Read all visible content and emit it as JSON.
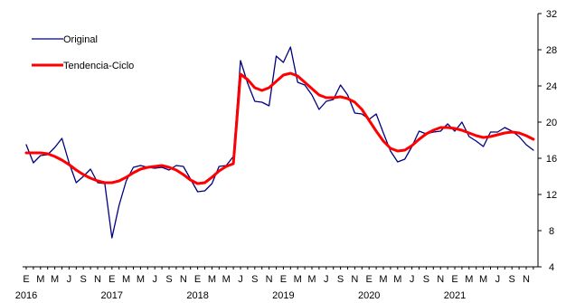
{
  "chart_data": {
    "type": "line",
    "title": "",
    "xlabel": "",
    "ylabel": "",
    "ylim": [
      4,
      32
    ],
    "y_ticks": [
      4,
      8,
      12,
      16,
      20,
      24,
      28,
      32
    ],
    "y_axis_side": "right",
    "grid": false,
    "legend_position": "top-left",
    "x_tick_labels": [
      "E",
      "M",
      "M",
      "J",
      "S",
      "N",
      "E",
      "M",
      "M",
      "J",
      "S",
      "N",
      "E",
      "M",
      "M",
      "J",
      "S",
      "N",
      "E",
      "M",
      "M",
      "J",
      "S",
      "N",
      "E",
      "M",
      "M",
      "J",
      "S",
      "N",
      "E",
      "M",
      "M",
      "J",
      "S",
      "N"
    ],
    "year_labels": [
      {
        "label": "2016",
        "month_index": 0
      },
      {
        "label": "2017",
        "month_index": 12
      },
      {
        "label": "2018",
        "month_index": 24
      },
      {
        "label": "2019",
        "month_index": 36
      },
      {
        "label": "2020",
        "month_index": 48
      },
      {
        "label": "2021",
        "month_index": 60
      }
    ],
    "x": [
      "2016-01",
      "2016-02",
      "2016-03",
      "2016-04",
      "2016-05",
      "2016-06",
      "2016-07",
      "2016-08",
      "2016-09",
      "2016-10",
      "2016-11",
      "2016-12",
      "2017-01",
      "2017-02",
      "2017-03",
      "2017-04",
      "2017-05",
      "2017-06",
      "2017-07",
      "2017-08",
      "2017-09",
      "2017-10",
      "2017-11",
      "2017-12",
      "2018-01",
      "2018-02",
      "2018-03",
      "2018-04",
      "2018-05",
      "2018-06",
      "2018-07",
      "2018-08",
      "2018-09",
      "2018-10",
      "2018-11",
      "2018-12",
      "2019-01",
      "2019-02",
      "2019-03",
      "2019-04",
      "2019-05",
      "2019-06",
      "2019-07",
      "2019-08",
      "2019-09",
      "2019-10",
      "2019-11",
      "2019-12",
      "2020-01",
      "2020-02",
      "2020-03",
      "2020-04",
      "2020-05",
      "2020-06",
      "2020-07",
      "2020-08",
      "2020-09",
      "2020-10",
      "2020-11",
      "2020-12",
      "2021-01",
      "2021-02",
      "2021-03",
      "2021-04",
      "2021-05",
      "2021-06",
      "2021-07",
      "2021-08",
      "2021-09",
      "2021-10",
      "2021-11",
      "2021-12"
    ],
    "series": [
      {
        "name": "Original",
        "color": "#000080",
        "values": [
          17.5,
          15.5,
          16.3,
          16.4,
          17.2,
          18.2,
          15.5,
          13.3,
          14.0,
          14.8,
          13.3,
          13.2,
          7.2,
          10.8,
          13.5,
          15.0,
          15.2,
          15.0,
          14.9,
          15.0,
          14.7,
          15.2,
          15.1,
          13.7,
          12.3,
          12.4,
          13.2,
          15.1,
          15.2,
          16.2,
          26.8,
          24.3,
          22.3,
          22.2,
          21.8,
          27.3,
          26.6,
          28.3,
          24.4,
          24.1,
          23.0,
          21.4,
          22.3,
          22.5,
          24.1,
          23.0,
          21.0,
          20.9,
          20.3,
          20.9,
          18.8,
          16.8,
          15.6,
          15.9,
          17.3,
          19.0,
          18.7,
          18.9,
          19.0,
          19.8,
          19.0,
          20.0,
          18.4,
          17.9,
          17.3,
          18.9,
          18.9,
          19.4,
          19.0,
          18.4,
          17.5,
          16.9
        ]
      },
      {
        "name": "Tendencia-Ciclo",
        "color": "#ff0000",
        "values": [
          16.6,
          16.6,
          16.6,
          16.5,
          16.2,
          15.8,
          15.3,
          14.7,
          14.2,
          13.8,
          13.5,
          13.3,
          13.3,
          13.5,
          13.9,
          14.4,
          14.8,
          15.0,
          15.1,
          15.2,
          15.0,
          14.7,
          14.2,
          13.6,
          13.2,
          13.3,
          13.9,
          14.6,
          15.1,
          15.4,
          25.3,
          24.7,
          23.8,
          23.5,
          23.8,
          24.5,
          25.2,
          25.4,
          25.1,
          24.4,
          23.7,
          23.0,
          22.7,
          22.7,
          22.8,
          22.6,
          22.2,
          21.4,
          20.2,
          19.0,
          17.9,
          17.1,
          16.8,
          16.9,
          17.4,
          18.1,
          18.7,
          19.1,
          19.4,
          19.4,
          19.3,
          19.1,
          18.8,
          18.5,
          18.3,
          18.4,
          18.6,
          18.8,
          18.9,
          18.8,
          18.5,
          18.1
        ]
      }
    ]
  }
}
